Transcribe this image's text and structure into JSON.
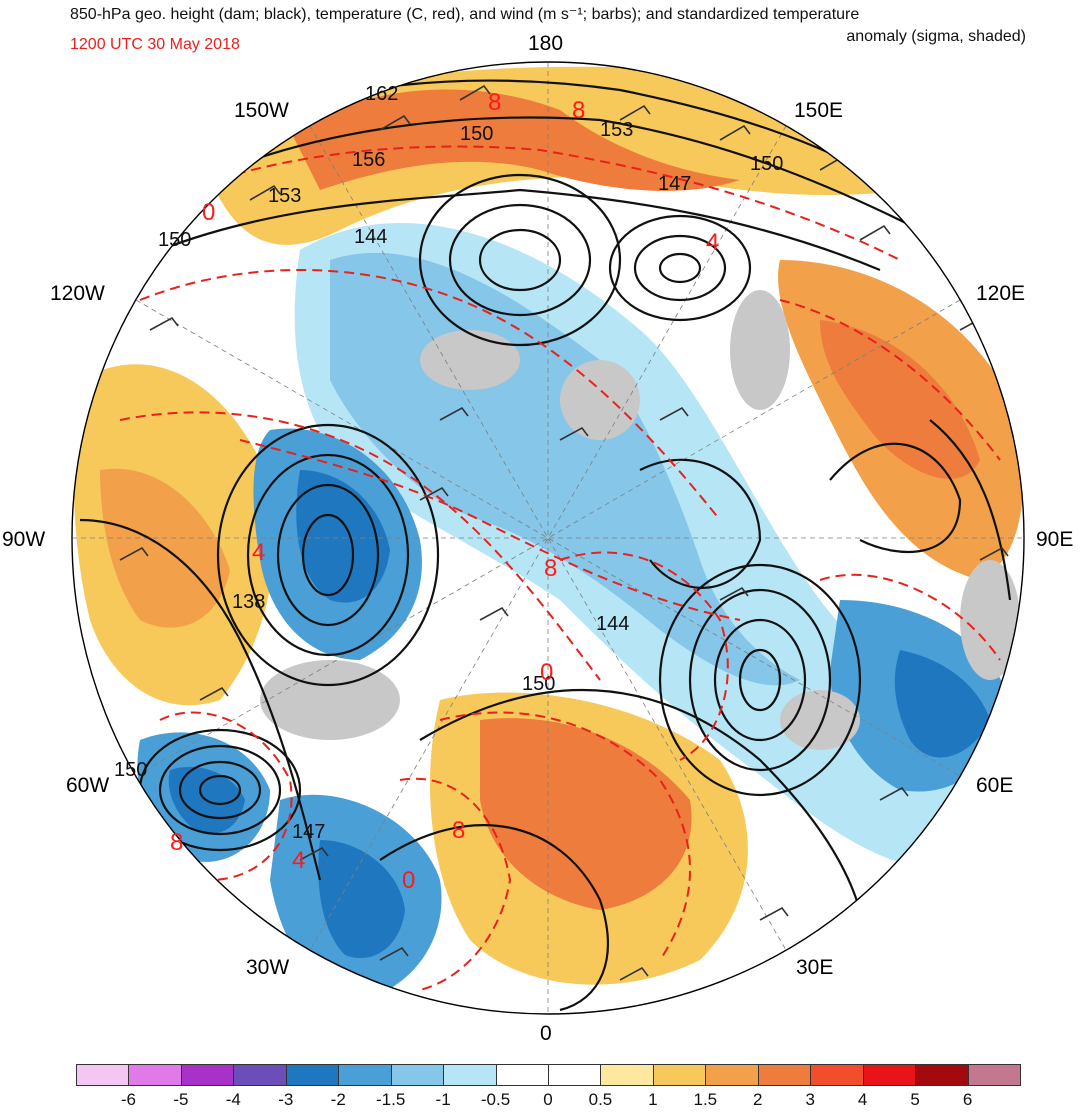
{
  "header": {
    "title_line1": "850-hPa geo. height (dam; black), temperature (C, red), and wind (m s⁻¹; barbs); and standardized temperature",
    "title_line2": "anomaly (sigma, shaded)",
    "valid_time": "1200 UTC 30 May 2018"
  },
  "colors": {
    "height_contour": "#111111",
    "temperature_contour": "#e8211c",
    "wind_barb": "#333333"
  },
  "longitude_labels": [
    "180",
    "150E",
    "120E",
    "90E",
    "60E",
    "30E",
    "0",
    "30W",
    "60W",
    "90W",
    "120W",
    "150W"
  ],
  "height_labels": [
    "162",
    "156",
    "153",
    "150",
    "144",
    "150",
    "153",
    "147",
    "150",
    "138",
    "144",
    "150",
    "150",
    "147"
  ],
  "temperature_labels": [
    "8",
    "8",
    "0",
    "4",
    "4",
    "8",
    "0",
    "8",
    "0",
    "8",
    "4"
  ],
  "colorbar": {
    "ticks": [
      "-6",
      "-5",
      "-4",
      "-3",
      "-2",
      "-1.5",
      "-1",
      "-0.5",
      "0",
      "0.5",
      "1",
      "1.5",
      "2",
      "3",
      "4",
      "5",
      "6"
    ],
    "colors": [
      "#f4c6f4",
      "#df7ae8",
      "#a832c8",
      "#6a4fb8",
      "#1f77c0",
      "#4a9fd6",
      "#86c6e8",
      "#b6e6f6",
      "#ffffff",
      "#ffffff",
      "#fde8a0",
      "#f7c95a",
      "#f2a04a",
      "#ee7c3c",
      "#f24d2c",
      "#e8141a",
      "#a30a0e",
      "#c47890"
    ]
  }
}
